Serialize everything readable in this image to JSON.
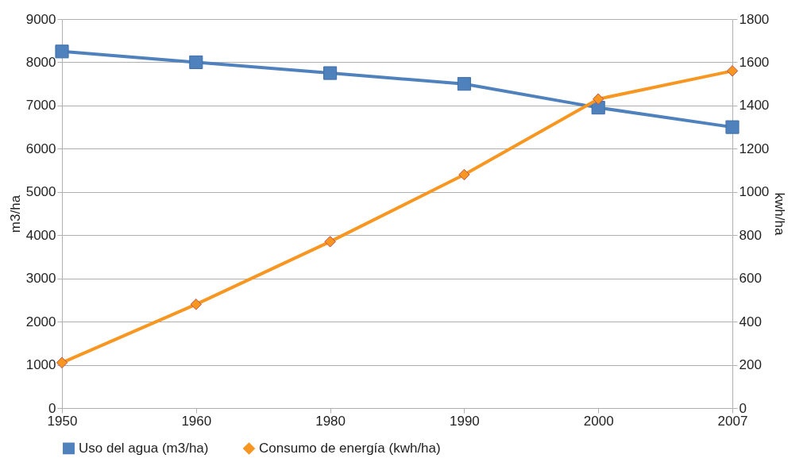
{
  "chart_data": {
    "type": "line",
    "categories": [
      "1950",
      "1960",
      "1980",
      "1990",
      "2000",
      "2007"
    ],
    "ylabel": "m3/ha",
    "y2label": "kwh/ha",
    "ylim": [
      0,
      9000
    ],
    "yticks": [
      0,
      1000,
      2000,
      3000,
      4000,
      5000,
      6000,
      7000,
      8000,
      9000
    ],
    "y2lim": [
      0,
      1800
    ],
    "y2ticks": [
      0,
      200,
      400,
      600,
      800,
      1000,
      1200,
      1400,
      1600,
      1800
    ],
    "grid": "y",
    "legend": "bottom",
    "series": [
      {
        "name": "Uso del agua (m3/ha)",
        "color": "#4f81bd",
        "marker": "square",
        "values": [
          8250,
          8000,
          7750,
          7500,
          6950,
          6500
        ]
      },
      {
        "name": "Consumo de energía (kwh/ha)",
        "color": "#f79620",
        "marker": "diamond",
        "axis": "y2",
        "values": [
          210,
          480,
          770,
          1080,
          1430,
          1560
        ]
      }
    ]
  }
}
